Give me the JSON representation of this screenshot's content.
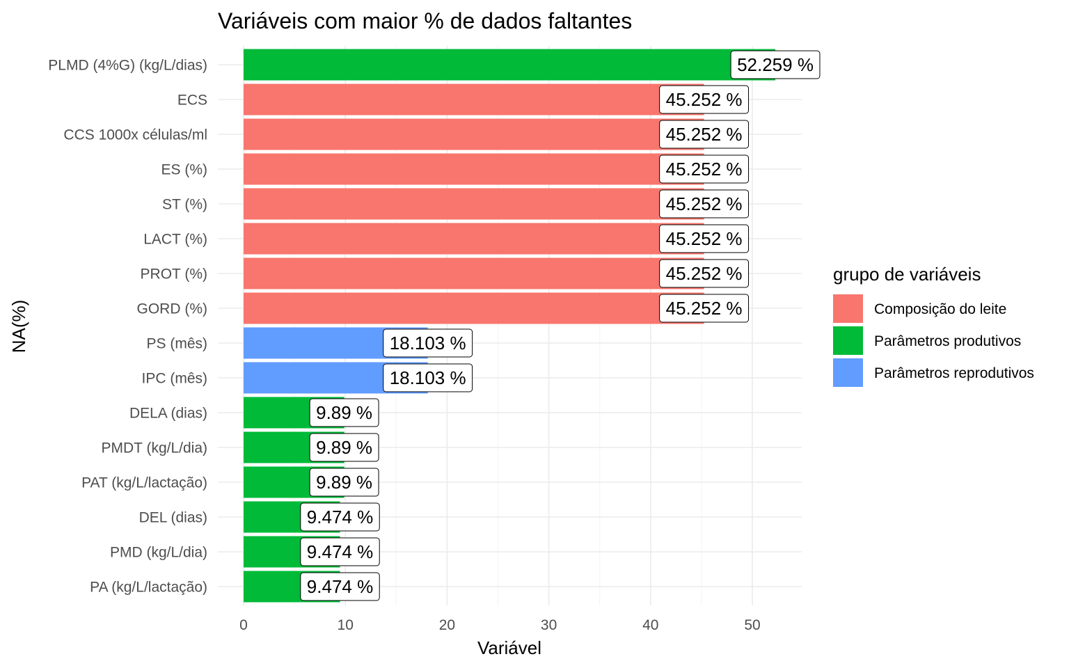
{
  "chart_data": {
    "type": "bar",
    "orientation": "horizontal",
    "title": "Variáveis com maior % de dados faltantes",
    "xlabel": "Variável",
    "ylabel": "NA(%)",
    "xlim": [
      0,
      55
    ],
    "x_ticks": [
      "0",
      "10",
      "20",
      "30",
      "40",
      "50"
    ],
    "grid": true,
    "legend": {
      "title": "grupo de variáveis",
      "position": "right",
      "entries": [
        {
          "name": "Composição do leite",
          "color": "#F8766D"
        },
        {
          "name": "Parâmetros produtivos",
          "color": "#00BA38"
        },
        {
          "name": "Parâmetros reprodutivos",
          "color": "#619CFF"
        }
      ]
    },
    "bars": [
      {
        "category": "PLMD (4%G) (kg/L/dias)",
        "value": 52.259,
        "label": "52.259 %",
        "group": 1
      },
      {
        "category": "ECS",
        "value": 45.252,
        "label": "45.252 %",
        "group": 0
      },
      {
        "category": "CCS 1000x células/ml",
        "value": 45.252,
        "label": "45.252 %",
        "group": 0
      },
      {
        "category": "ES (%)",
        "value": 45.252,
        "label": "45.252 %",
        "group": 0
      },
      {
        "category": "ST (%)",
        "value": 45.252,
        "label": "45.252 %",
        "group": 0
      },
      {
        "category": "LACT (%)",
        "value": 45.252,
        "label": "45.252 %",
        "group": 0
      },
      {
        "category": "PROT (%)",
        "value": 45.252,
        "label": "45.252 %",
        "group": 0
      },
      {
        "category": "GORD (%)",
        "value": 45.252,
        "label": "45.252 %",
        "group": 0
      },
      {
        "category": "PS (mês)",
        "value": 18.103,
        "label": "18.103 %",
        "group": 2
      },
      {
        "category": "IPC (mês)",
        "value": 18.103,
        "label": "18.103 %",
        "group": 2
      },
      {
        "category": "DELA (dias)",
        "value": 9.89,
        "label": "9.89 %",
        "group": 1
      },
      {
        "category": "PMDT (kg/L/dia)",
        "value": 9.89,
        "label": "9.89 %",
        "group": 1
      },
      {
        "category": "PAT (kg/L/lactação)",
        "value": 9.89,
        "label": "9.89 %",
        "group": 1
      },
      {
        "category": "DEL (dias)",
        "value": 9.474,
        "label": "9.474 %",
        "group": 1
      },
      {
        "category": "PMD (kg/L/dia)",
        "value": 9.474,
        "label": "9.474 %",
        "group": 1
      },
      {
        "category": "PA (kg/L/lactação)",
        "value": 9.474,
        "label": "9.474 %",
        "group": 1
      }
    ]
  }
}
